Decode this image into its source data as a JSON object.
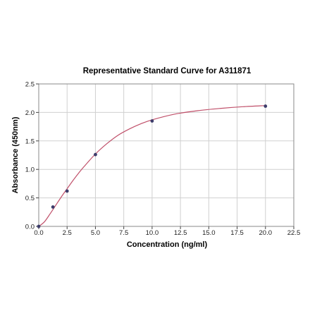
{
  "chart_data": {
    "type": "scatter",
    "title": "Representative Standard Curve for A311871",
    "xlabel": "Concentration (ng/ml)",
    "ylabel": "Absorbance (450nm)",
    "xlim": [
      0,
      22.5
    ],
    "ylim": [
      0,
      2.5
    ],
    "x_ticks": [
      "0.0",
      "2.5",
      "5.0",
      "7.5",
      "10.0",
      "12.5",
      "15.0",
      "17.5",
      "20.0",
      "22.5"
    ],
    "y_ticks": [
      "0.0",
      "0.5",
      "1.0",
      "1.5",
      "2.0",
      "2.5"
    ],
    "grid": true,
    "colors": {
      "curve": "#c0506a",
      "points": "#3d3d6b",
      "grid": "#d0d0d0"
    },
    "series": [
      {
        "x": [
          0,
          1.25,
          2.5,
          5.0,
          10.0,
          20.0
        ],
        "y": [
          0.0,
          0.34,
          0.62,
          1.26,
          1.85,
          2.11
        ]
      }
    ],
    "fit_curve": {
      "x": [
        0,
        0.5,
        1,
        1.5,
        2,
        2.5,
        3,
        3.5,
        4,
        5,
        6,
        7,
        8,
        9,
        10,
        12,
        14,
        16,
        18,
        20
      ],
      "y": [
        0.0,
        0.08,
        0.22,
        0.37,
        0.52,
        0.66,
        0.8,
        0.93,
        1.05,
        1.27,
        1.45,
        1.6,
        1.71,
        1.8,
        1.87,
        1.97,
        2.03,
        2.07,
        2.1,
        2.12
      ]
    }
  }
}
